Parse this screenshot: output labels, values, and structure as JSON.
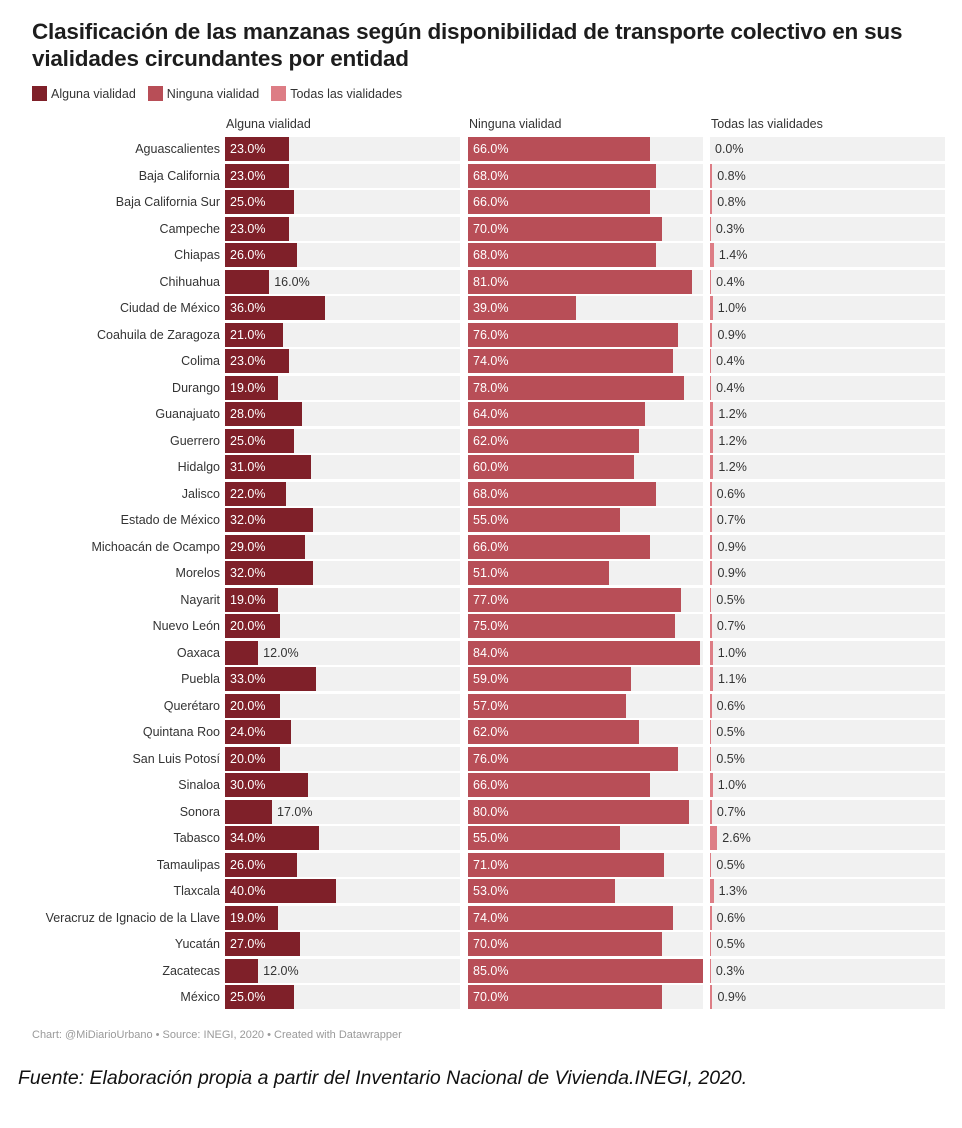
{
  "title": "Clasificación de las manzanas según disponibilidad de transporte colectivo en sus vialidades circundantes por entidad",
  "legend": [
    {
      "label": "Alguna vialidad",
      "color": "#7f2029"
    },
    {
      "label": "Ninguna vialidad",
      "color": "#b84e57"
    },
    {
      "label": "Todas las vialidades",
      "color": "#dd7d85"
    }
  ],
  "credit": "Chart: @MiDiarioUrbano • Source: INEGI, 2020 • Created with Datawrapper",
  "fuente": "Fuente: Elaboración propia a partir del Inventario Nacional de Vivienda.INEGI, 2020.",
  "chart_data": {
    "type": "bar",
    "orientation": "horizontal",
    "layout": "split-bars",
    "title": "Clasificación de las manzanas según disponibilidad de transporte colectivo en sus vialidades circundantes por entidad",
    "xlim": [
      0,
      85
    ],
    "unit": "%",
    "categories": [
      "Aguascalientes",
      "Baja California",
      "Baja California Sur",
      "Campeche",
      "Chiapas",
      "Chihuahua",
      "Ciudad de México",
      "Coahuila de Zaragoza",
      "Colima",
      "Durango",
      "Guanajuato",
      "Guerrero",
      "Hidalgo",
      "Jalisco",
      "Estado de México",
      "Michoacán de Ocampo",
      "Morelos",
      "Nayarit",
      "Nuevo León",
      "Oaxaca",
      "Puebla",
      "Querétaro",
      "Quintana Roo",
      "San Luis Potosí",
      "Sinaloa",
      "Sonora",
      "Tabasco",
      "Tamaulipas",
      "Tlaxcala",
      "Veracruz de Ignacio de la Llave",
      "Yucatán",
      "Zacatecas",
      "México"
    ],
    "series": [
      {
        "name": "Alguna vialidad",
        "color": "#7f2029",
        "values": [
          23,
          23,
          25,
          23,
          26,
          16,
          36,
          21,
          23,
          19,
          28,
          25,
          31,
          22,
          32,
          29,
          32,
          19,
          20,
          12,
          33,
          20,
          24,
          20,
          30,
          17,
          34,
          26,
          40,
          19,
          27,
          12,
          25
        ]
      },
      {
        "name": "Ninguna vialidad",
        "color": "#b84e57",
        "values": [
          66,
          68,
          66,
          70,
          68,
          81,
          39,
          76,
          74,
          78,
          64,
          62,
          60,
          68,
          55,
          66,
          51,
          77,
          75,
          84,
          59,
          57,
          62,
          76,
          66,
          80,
          55,
          71,
          53,
          74,
          70,
          85,
          70
        ]
      },
      {
        "name": "Todas las vialidades",
        "color": "#dd7d85",
        "values": [
          0.0,
          0.8,
          0.8,
          0.3,
          1.4,
          0.4,
          1.0,
          0.9,
          0.4,
          0.4,
          1.2,
          1.2,
          1.2,
          0.6,
          0.7,
          0.9,
          0.9,
          0.5,
          0.7,
          1.0,
          1.1,
          0.6,
          0.5,
          0.5,
          1.0,
          0.7,
          2.6,
          0.5,
          1.3,
          0.6,
          0.5,
          0.3,
          0.9
        ]
      }
    ],
    "legend_position": "top-left",
    "grid": false
  }
}
